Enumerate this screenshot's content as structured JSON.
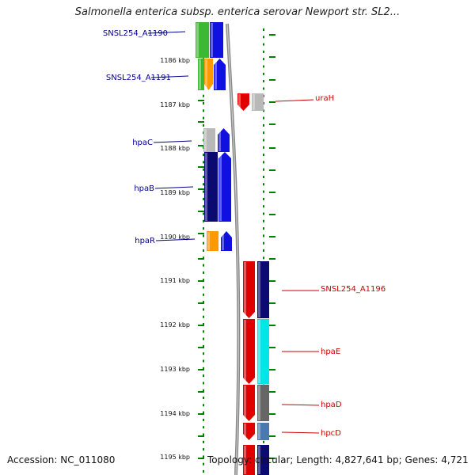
{
  "title": "Salmonella enterica subsp. enterica serovar Newport str. SL2...",
  "footer": {
    "accession": "Accession: NC_011080",
    "topology": "Topology: circular; Length: 4,827,641 bp; Genes: 4,721"
  },
  "colors": {
    "left_label": "#00008b",
    "right_label": "#cc0000",
    "tick": "#008000",
    "backbone": "#888888"
  },
  "ticks": [
    {
      "label": "1186 kbp"
    },
    {
      "label": "1187 kbp"
    },
    {
      "label": "1188 kbp"
    },
    {
      "label": "1189 kbp"
    },
    {
      "label": "1190 kbp"
    },
    {
      "label": "1191 kbp"
    },
    {
      "label": "1192 kbp"
    },
    {
      "label": "1193 kbp"
    },
    {
      "label": "1194 kbp"
    },
    {
      "label": "1195 kbp"
    }
  ],
  "left_genes": [
    {
      "label": "SNSL254_A1190"
    },
    {
      "label": "SNSL254_A1191"
    },
    {
      "label": "hpaC"
    },
    {
      "label": "hpaB"
    },
    {
      "label": "hpaR"
    }
  ],
  "right_genes": [
    {
      "label": "uraH"
    },
    {
      "label": "SNSL254_A1196"
    },
    {
      "label": "hpaE"
    },
    {
      "label": "hpaD"
    },
    {
      "label": "hpcD"
    }
  ]
}
